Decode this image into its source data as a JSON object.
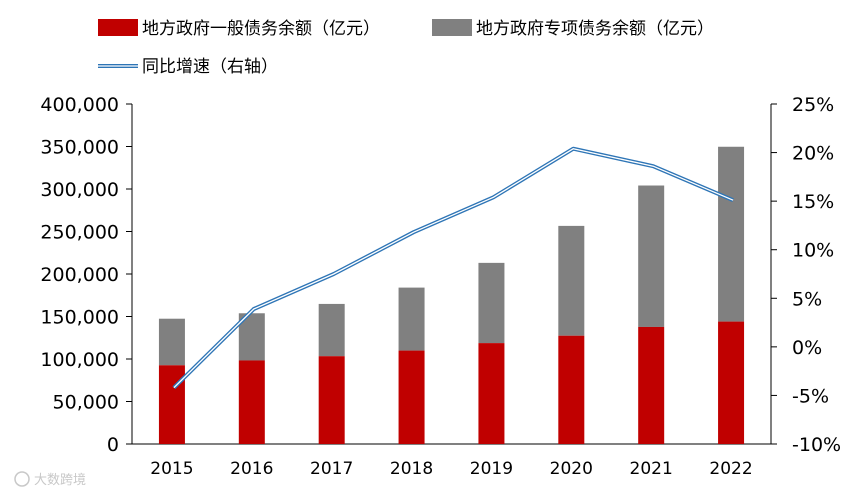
{
  "chart_data": {
    "type": "bar",
    "stacked": true,
    "categories": [
      "2015",
      "2016",
      "2017",
      "2018",
      "2019",
      "2020",
      "2021",
      "2022"
    ],
    "series": [
      {
        "name": "地方政府一般债务余额（亿元）",
        "type": "bar",
        "axis": "left",
        "color": "#c00000",
        "values": [
          92600,
          98300,
          103300,
          109900,
          118700,
          127400,
          137700,
          144000
        ]
      },
      {
        "name": "地方政府专项债务余额（亿元）",
        "type": "bar",
        "axis": "left",
        "color": "#808080",
        "values": [
          54800,
          55500,
          61500,
          74100,
          94400,
          129200,
          166400,
          205700
        ]
      },
      {
        "name": "同比增速（右轴）",
        "type": "line",
        "axis": "right",
        "color": "#2e75b6",
        "values": [
          -4.2,
          3.9,
          7.5,
          11.8,
          15.4,
          20.4,
          18.6,
          15.1
        ]
      }
    ],
    "y_left": {
      "min": 0,
      "max": 400000,
      "step": 50000,
      "tick_labels": [
        "0",
        "50,000",
        "100,000",
        "150,000",
        "200,000",
        "250,000",
        "300,000",
        "350,000",
        "400,000"
      ]
    },
    "y_right": {
      "min": -10,
      "max": 25,
      "step": 5,
      "tick_labels": [
        "-10%",
        "-5%",
        "0%",
        "5%",
        "10%",
        "15%",
        "20%",
        "25%"
      ]
    },
    "legend": {
      "position": "top-left"
    },
    "grid": false
  },
  "watermark": {
    "text": "大数跨境",
    "icon": "watermark-logo-icon"
  }
}
